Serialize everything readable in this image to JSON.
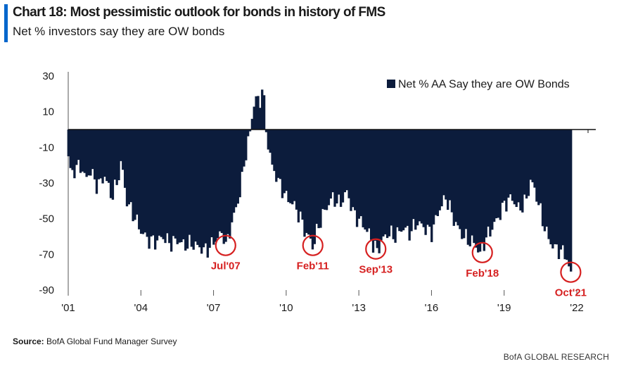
{
  "header": {
    "title": "Chart 18: Most pessimistic outlook for bonds in history of FMS",
    "subtitle": "Net % investors say they are OW bonds"
  },
  "footer": {
    "source_label": "Source:",
    "source_text": "BofA Global Fund Manager Survey",
    "brand": "BofA GLOBAL RESEARCH"
  },
  "colors": {
    "bars": "#0c1c3c",
    "annotation": "#d62020",
    "title_accent": "#0066cc"
  },
  "chart_data": {
    "type": "area",
    "legend": {
      "label": "Net % AA Say they are OW Bonds",
      "position": "top-right"
    },
    "xlim": [
      2001.0,
      2022.0
    ],
    "ylim": [
      -90,
      30
    ],
    "yticks": [
      30,
      10,
      -10,
      -30,
      -50,
      -70,
      -90
    ],
    "xticks": [
      {
        "value": 2001,
        "label": "'01"
      },
      {
        "value": 2004,
        "label": "'04"
      },
      {
        "value": 2007,
        "label": "'07"
      },
      {
        "value": 2010,
        "label": "'10"
      },
      {
        "value": 2013,
        "label": "'13"
      },
      {
        "value": 2016,
        "label": "'16"
      },
      {
        "value": 2019,
        "label": "'19"
      },
      {
        "value": 2022,
        "label": "'22"
      }
    ],
    "series": [
      {
        "name": "Net % AA Say they are OW Bonds",
        "anchors": [
          [
            2001.0,
            -15
          ],
          [
            2001.1,
            -25
          ],
          [
            2001.3,
            -22
          ],
          [
            2001.5,
            -20
          ],
          [
            2001.7,
            -28
          ],
          [
            2001.9,
            -23
          ],
          [
            2002.2,
            -32
          ],
          [
            2002.5,
            -26
          ],
          [
            2002.8,
            -38
          ],
          [
            2003.0,
            -30
          ],
          [
            2003.2,
            -18
          ],
          [
            2003.4,
            -40
          ],
          [
            2003.7,
            -48
          ],
          [
            2004.0,
            -57
          ],
          [
            2004.3,
            -62
          ],
          [
            2004.6,
            -63
          ],
          [
            2004.9,
            -60
          ],
          [
            2005.2,
            -64
          ],
          [
            2005.5,
            -62
          ],
          [
            2005.8,
            -65
          ],
          [
            2006.1,
            -64
          ],
          [
            2006.4,
            -66
          ],
          [
            2006.7,
            -68
          ],
          [
            2007.0,
            -63
          ],
          [
            2007.2,
            -60
          ],
          [
            2007.4,
            -58
          ],
          [
            2007.5,
            -66
          ],
          [
            2007.7,
            -55
          ],
          [
            2007.9,
            -45
          ],
          [
            2008.1,
            -35
          ],
          [
            2008.3,
            -15
          ],
          [
            2008.5,
            -2
          ],
          [
            2008.6,
            10
          ],
          [
            2008.75,
            18
          ],
          [
            2008.9,
            14
          ],
          [
            2009.0,
            24
          ],
          [
            2009.1,
            12
          ],
          [
            2009.2,
            -5
          ],
          [
            2009.4,
            -20
          ],
          [
            2009.7,
            -30
          ],
          [
            2010.0,
            -38
          ],
          [
            2010.3,
            -42
          ],
          [
            2010.6,
            -50
          ],
          [
            2010.8,
            -58
          ],
          [
            2011.0,
            -62
          ],
          [
            2011.1,
            -66
          ],
          [
            2011.3,
            -55
          ],
          [
            2011.6,
            -45
          ],
          [
            2011.9,
            -38
          ],
          [
            2012.2,
            -42
          ],
          [
            2012.5,
            -35
          ],
          [
            2012.8,
            -48
          ],
          [
            2013.1,
            -52
          ],
          [
            2013.4,
            -58
          ],
          [
            2013.6,
            -65
          ],
          [
            2013.75,
            -68
          ],
          [
            2013.95,
            -62
          ],
          [
            2014.2,
            -58
          ],
          [
            2014.5,
            -60
          ],
          [
            2014.8,
            -55
          ],
          [
            2015.1,
            -58
          ],
          [
            2015.4,
            -52
          ],
          [
            2015.7,
            -55
          ],
          [
            2016.0,
            -58
          ],
          [
            2016.3,
            -45
          ],
          [
            2016.6,
            -38
          ],
          [
            2016.9,
            -50
          ],
          [
            2017.2,
            -58
          ],
          [
            2017.5,
            -62
          ],
          [
            2017.8,
            -64
          ],
          [
            2018.0,
            -70
          ],
          [
            2018.2,
            -62
          ],
          [
            2018.5,
            -55
          ],
          [
            2018.8,
            -48
          ],
          [
            2019.0,
            -42
          ],
          [
            2019.3,
            -38
          ],
          [
            2019.6,
            -45
          ],
          [
            2019.9,
            -40
          ],
          [
            2020.1,
            -28
          ],
          [
            2020.35,
            -38
          ],
          [
            2020.6,
            -52
          ],
          [
            2020.85,
            -62
          ],
          [
            2021.05,
            -66
          ],
          [
            2021.3,
            -68
          ],
          [
            2021.55,
            -70
          ],
          [
            2021.7,
            -80
          ],
          [
            2021.78,
            -82
          ]
        ]
      }
    ],
    "annotations": [
      {
        "label": "Jul'07",
        "x": 2007.5,
        "y": -65
      },
      {
        "label": "Feb'11",
        "x": 2011.1,
        "y": -65
      },
      {
        "label": "Sep'13",
        "x": 2013.7,
        "y": -67
      },
      {
        "label": "Feb'18",
        "x": 2018.1,
        "y": -69
      },
      {
        "label": "Oct'21",
        "x": 2021.75,
        "y": -80
      }
    ]
  }
}
